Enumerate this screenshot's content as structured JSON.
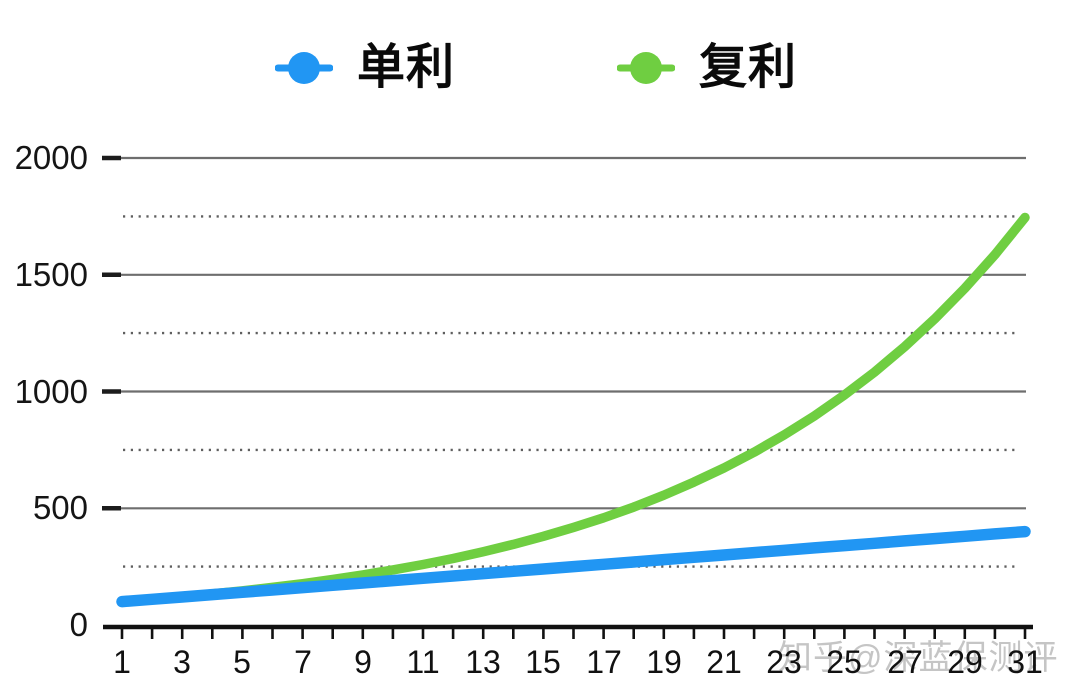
{
  "chart_data": {
    "type": "line",
    "title": "",
    "xlabel": "",
    "ylabel": "",
    "x": [
      1,
      2,
      3,
      4,
      5,
      6,
      7,
      8,
      9,
      10,
      11,
      12,
      13,
      14,
      15,
      16,
      17,
      18,
      19,
      20,
      21,
      22,
      23,
      24,
      25,
      26,
      27,
      28,
      29,
      30,
      31
    ],
    "x_tick_labels": [
      "1",
      "3",
      "5",
      "7",
      "9",
      "11",
      "13",
      "15",
      "17",
      "19",
      "21",
      "23",
      "25",
      "27",
      "29",
      "31"
    ],
    "y_ticks": [
      {
        "value": 0,
        "label": "0"
      },
      {
        "value": 500,
        "label": "500"
      },
      {
        "value": 1000,
        "label": "1000"
      },
      {
        "value": 1500,
        "label": "1500"
      },
      {
        "value": 2000,
        "label": "2000"
      }
    ],
    "ylim": [
      0,
      2000
    ],
    "grid": true,
    "gridlines": {
      "solid": [
        500,
        1000,
        1500,
        2000
      ],
      "dotted": [
        250,
        750,
        1250,
        1750
      ],
      "solid_color": "#6e6e6e",
      "dotted_color": "#5f5f5f",
      "tick_nub_color": "#1c1c1c"
    },
    "axis_color": "#111111",
    "legend_position": "top-center",
    "series": [
      {
        "name": "单利",
        "color": "#2196F3",
        "line_width": 11.5,
        "values": [
          100,
          110,
          120,
          130,
          140,
          150,
          160,
          170,
          180,
          190,
          200,
          210,
          220,
          230,
          240,
          250,
          260,
          270,
          280,
          290,
          300,
          310,
          320,
          330,
          340,
          350,
          360,
          370,
          380,
          390,
          400
        ]
      },
      {
        "name": "复利",
        "color": "#6FCE41",
        "line_width": 9.5,
        "values": [
          100,
          110,
          121,
          133,
          146,
          161,
          177,
          195,
          214,
          236,
          259,
          285,
          314,
          345,
          380,
          418,
          459,
          505,
          556,
          612,
          673,
          740,
          814,
          895,
          985,
          1083,
          1192,
          1311,
          1442,
          1586,
          1745
        ]
      }
    ]
  },
  "watermark": {
    "text": "知乎@深蓝保测评"
  }
}
